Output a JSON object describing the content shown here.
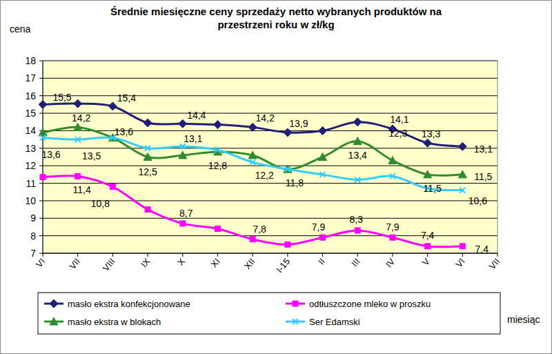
{
  "chart_data": {
    "type": "line",
    "title": "Średnie miesięczne ceny sprzedaży netto  wybranych produktów na przestrzeni roku w zł/kg",
    "y_label": "cena",
    "x_label": "miesiąc",
    "categories": [
      "VI",
      "VII",
      "VIII",
      "IX",
      "X",
      "XI",
      "XII",
      "I-15",
      "II",
      "III",
      "IV",
      "V",
      "VI",
      "VII"
    ],
    "ylim": [
      7,
      18
    ],
    "yticks": [
      7,
      8,
      9,
      10,
      11,
      12,
      13,
      14,
      15,
      16,
      17,
      18
    ],
    "grid": true,
    "data_labels": true,
    "line_style": "smooth",
    "legend": "bottom",
    "series": [
      {
        "name": "masło ekstra konfekcjonowane",
        "color": "#1f1f7a",
        "marker": "diamond",
        "values": [
          15.5,
          15.55,
          15.4,
          14.45,
          14.4,
          14.35,
          14.2,
          13.9,
          14.0,
          14.5,
          14.1,
          13.3,
          13.1,
          null
        ],
        "value_labels": [
          "15,5",
          null,
          "15,4",
          null,
          "14,4",
          null,
          "14,2",
          "13,9",
          null,
          null,
          "14,1",
          "13,3",
          "13,1",
          null
        ]
      },
      {
        "name": "odtłuszczone mleko w proszku",
        "color": "#ff00ff",
        "marker": "square",
        "values": [
          11.35,
          11.4,
          10.8,
          9.5,
          8.7,
          8.4,
          7.8,
          7.5,
          7.9,
          8.3,
          7.9,
          7.4,
          7.4,
          null
        ],
        "value_labels": [
          null,
          "11,4",
          "10,8",
          null,
          "8,7",
          null,
          "7,8",
          null,
          "7,9",
          "8,3",
          "7,9",
          "7,4",
          "7,4",
          null
        ]
      },
      {
        "name": "masło ekstra w blokach",
        "color": "#2e8b2e",
        "marker": "triangle",
        "values": [
          13.9,
          14.2,
          13.6,
          12.5,
          12.6,
          12.8,
          12.6,
          11.8,
          12.5,
          13.4,
          12.3,
          11.5,
          11.5,
          null
        ],
        "value_labels": [
          null,
          "14,2",
          "13,6",
          "12,5",
          null,
          "12,8",
          null,
          "11,8",
          null,
          "13,4",
          "12,3",
          "11,5",
          "11,5",
          null
        ]
      },
      {
        "name": "Ser Edamski",
        "color": "#33ccff",
        "marker": "x",
        "values": [
          13.6,
          13.5,
          13.6,
          13.0,
          13.1,
          12.9,
          12.2,
          11.8,
          11.5,
          11.2,
          11.4,
          10.7,
          10.6,
          null
        ],
        "value_labels": [
          "13,6",
          "13,5",
          null,
          null,
          "13,1",
          null,
          "12,2",
          null,
          null,
          null,
          null,
          null,
          "10,6",
          null
        ]
      }
    ]
  }
}
